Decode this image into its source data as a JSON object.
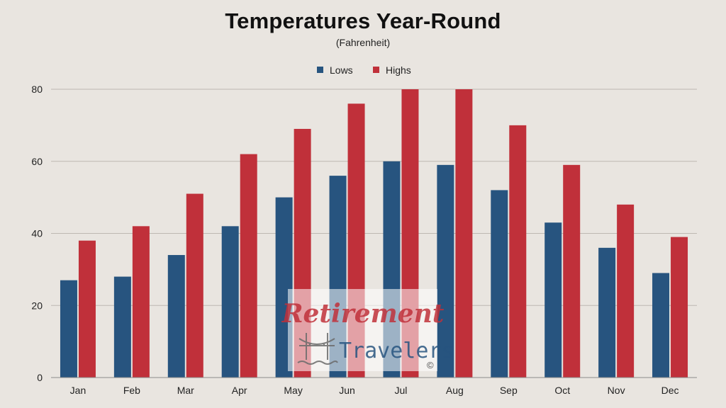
{
  "chart_data": {
    "type": "bar",
    "title": "Temperatures Year-Round",
    "subtitle": "(Fahrenheit)",
    "xlabel": "",
    "ylabel": "",
    "categories": [
      "Jan",
      "Feb",
      "Mar",
      "Apr",
      "May",
      "Jun",
      "Jul",
      "Aug",
      "Sep",
      "Oct",
      "Nov",
      "Dec"
    ],
    "series": [
      {
        "name": "Lows",
        "color": "#27547f",
        "values": [
          27,
          28,
          34,
          42,
          50,
          56,
          60,
          59,
          52,
          43,
          36,
          29
        ]
      },
      {
        "name": "Highs",
        "color": "#c0303a",
        "values": [
          38,
          42,
          51,
          62,
          69,
          76,
          80,
          80,
          70,
          59,
          48,
          39
        ]
      }
    ],
    "ylim": [
      0,
      80
    ],
    "yticks": [
      0,
      20,
      40,
      60,
      80
    ],
    "grid": true,
    "legend": "top-center"
  },
  "watermark": {
    "line1": "Retirement",
    "line2": "Travelers",
    "mark": "©",
    "icon": "bridge-icon"
  }
}
